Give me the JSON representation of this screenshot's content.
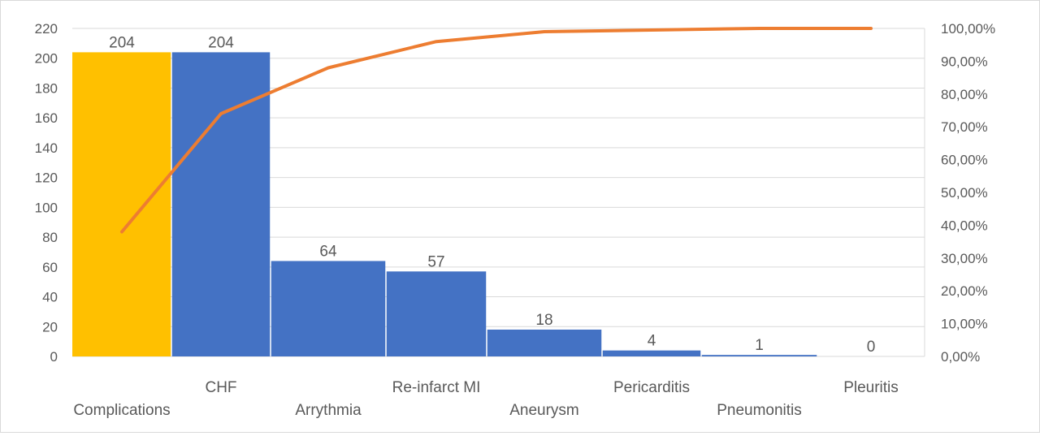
{
  "chart_data": {
    "type": "bar",
    "title": "",
    "xlabel": "",
    "ylabel": "",
    "categories": [
      "Complications",
      "CHF",
      "Arrythmia",
      "Re-infarct MI",
      "Aneurysm",
      "Pericarditis",
      "Pneumonitis",
      "Pleuritis"
    ],
    "values": [
      204,
      204,
      64,
      57,
      18,
      4,
      1,
      0
    ],
    "data_labels": [
      "204",
      "204",
      "64",
      "57",
      "18",
      "4",
      "1",
      "0"
    ],
    "bar_colors": [
      "#FFC000",
      "#4472C4",
      "#4472C4",
      "#4472C4",
      "#4472C4",
      "#4472C4",
      "#4472C4",
      "#4472C4"
    ],
    "y_left": {
      "lim": [
        0,
        220
      ],
      "ticks": [
        "0",
        "20",
        "40",
        "60",
        "80",
        "100",
        "120",
        "140",
        "160",
        "180",
        "200",
        "220"
      ]
    },
    "line_series": {
      "values_percent": [
        38,
        74,
        88,
        96,
        99,
        99.5,
        100,
        100
      ],
      "color": "#ED7D31"
    },
    "y_right": {
      "lim": [
        0,
        100
      ],
      "ticks": [
        "0,00%",
        "10,00%",
        "20,00%",
        "30,00%",
        "40,00%",
        "50,00%",
        "60,00%",
        "70,00%",
        "80,00%",
        "90,00%",
        "100,00%"
      ]
    },
    "grid": true,
    "legend": "none"
  }
}
